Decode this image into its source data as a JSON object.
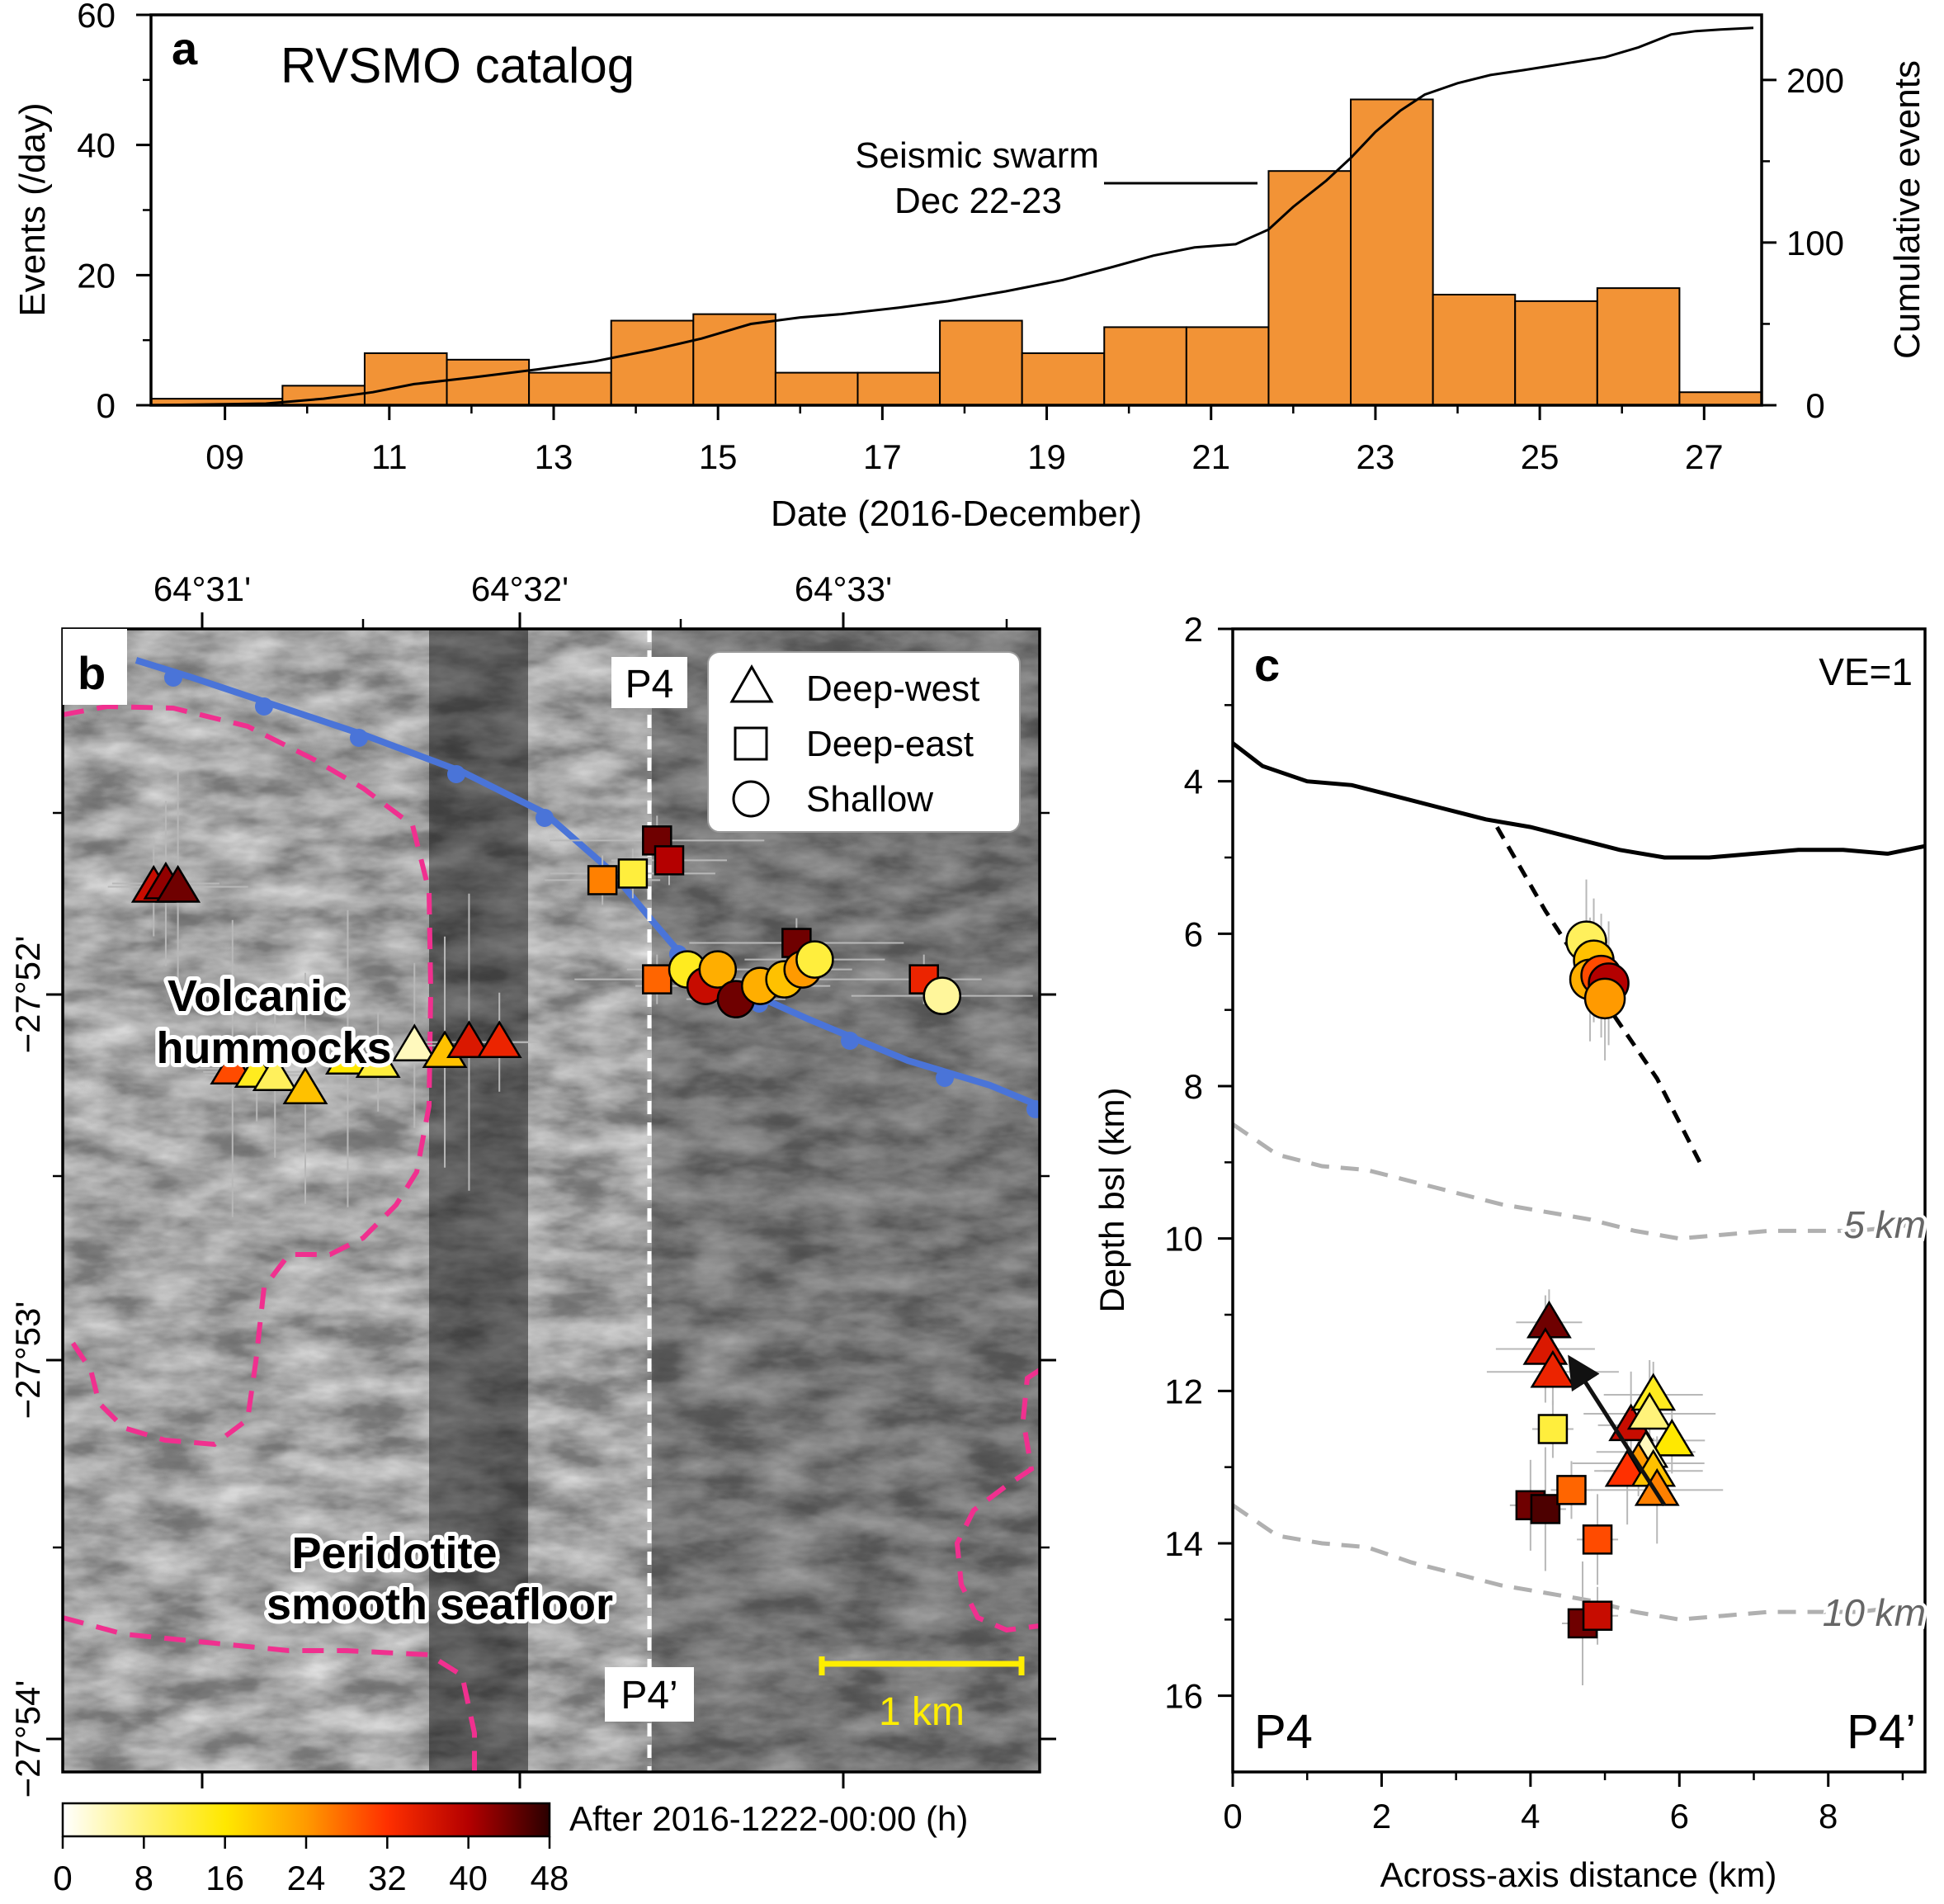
{
  "chart_data": [
    {
      "panel": "a",
      "type": "bar",
      "title": "RVSMO catalog",
      "xlabel": "Date (2016-December)",
      "ylabel": "Events (/day)",
      "y2label": "Cumulative events",
      "x_tick_labels": [
        "09",
        "11",
        "13",
        "15",
        "17",
        "19",
        "21",
        "23",
        "25",
        "27"
      ],
      "x_tick_values": [
        9,
        11,
        13,
        15,
        17,
        19,
        21,
        23,
        25,
        27
      ],
      "xlim": [
        8.1,
        27.7
      ],
      "ylim": [
        0,
        60
      ],
      "y_ticks": [
        0,
        20,
        40,
        60
      ],
      "y2lim": [
        0,
        240
      ],
      "y2_ticks": [
        0,
        100,
        200
      ],
      "bar_color": "#f29336",
      "bars": [
        {
          "start": 8.1,
          "end": 9.7,
          "value": 1
        },
        {
          "start": 9.7,
          "end": 10.7,
          "value": 3
        },
        {
          "start": 10.7,
          "end": 11.7,
          "value": 8
        },
        {
          "start": 11.7,
          "end": 12.7,
          "value": 7
        },
        {
          "start": 12.7,
          "end": 13.7,
          "value": 5
        },
        {
          "start": 13.7,
          "end": 14.7,
          "value": 13
        },
        {
          "start": 14.7,
          "end": 15.7,
          "value": 14
        },
        {
          "start": 15.7,
          "end": 16.7,
          "value": 5
        },
        {
          "start": 16.7,
          "end": 17.7,
          "value": 5
        },
        {
          "start": 17.7,
          "end": 18.7,
          "value": 13
        },
        {
          "start": 18.7,
          "end": 19.7,
          "value": 8
        },
        {
          "start": 19.7,
          "end": 20.7,
          "value": 12
        },
        {
          "start": 20.7,
          "end": 21.7,
          "value": 12
        },
        {
          "start": 21.7,
          "end": 22.7,
          "value": 36
        },
        {
          "start": 22.7,
          "end": 23.7,
          "value": 47
        },
        {
          "start": 23.7,
          "end": 24.7,
          "value": 17
        },
        {
          "start": 24.7,
          "end": 25.7,
          "value": 16
        },
        {
          "start": 25.7,
          "end": 26.7,
          "value": 18
        },
        {
          "start": 26.7,
          "end": 27.7,
          "value": 2
        }
      ],
      "cumulative": {
        "x": [
          8.1,
          9.5,
          10.2,
          10.8,
          11.3,
          12.0,
          12.8,
          13.5,
          14.2,
          14.8,
          15.4,
          16.0,
          16.5,
          17.2,
          17.8,
          18.5,
          19.2,
          19.8,
          20.3,
          20.8,
          21.3,
          21.7,
          22.0,
          22.4,
          22.7,
          23.0,
          23.3,
          23.6,
          24.0,
          24.4,
          24.8,
          25.3,
          25.8,
          26.2,
          26.6,
          26.9,
          27.2,
          27.6
        ],
        "y": [
          0,
          1,
          4,
          8,
          13,
          17,
          22,
          27,
          34,
          41,
          50,
          54,
          56,
          60,
          64,
          70,
          77,
          85,
          92,
          97,
          99,
          108,
          122,
          138,
          152,
          168,
          181,
          191,
          198,
          203,
          206,
          210,
          214,
          220,
          228,
          230,
          231,
          232
        ]
      },
      "annotation": {
        "lines": [
          "Seismic swarm",
          "Dec 22-23"
        ]
      },
      "grid": false
    },
    {
      "panel": "b",
      "type": "scatter",
      "description_labels": [
        "Volcanic",
        "hummocks",
        "Peridotite",
        "smooth seafloor"
      ],
      "x_tick_labels": [
        "64°31'",
        "64°32'",
        "64°33'"
      ],
      "y_tick_labels": [
        "−27°52'",
        "−27°53'",
        "−27°54'"
      ],
      "profile_labels": [
        "P4",
        "P4’"
      ],
      "scale_bar_label": "1 km",
      "legend": [
        {
          "shape": "triangle",
          "label": "Deep-west"
        },
        {
          "shape": "square",
          "label": "Deep-east"
        },
        {
          "shape": "circle",
          "label": "Shallow"
        }
      ],
      "legend_position": "top-right",
      "colorbar": {
        "label": "After 2016-1222-00:00 (h)",
        "ticks": [
          "0",
          "8",
          "16",
          "24",
          "32",
          "40",
          "48"
        ],
        "range": [
          0,
          48
        ],
        "colors": [
          "#ffffff",
          "#fff37a",
          "#ffe800",
          "#ff9a00",
          "#ff3000",
          "#b40000",
          "#2a0000"
        ]
      },
      "events": {
        "triangles": [
          {
            "e": 1.5,
            "n": 12.1,
            "t": 38
          },
          {
            "e": 1.7,
            "n": 12.15,
            "t": 42
          },
          {
            "e": 1.9,
            "n": 12.1,
            "t": 44
          },
          {
            "e": 2.8,
            "n": 9.35,
            "t": 30
          },
          {
            "e": 3.2,
            "n": 9.3,
            "t": 14
          },
          {
            "e": 3.5,
            "n": 9.25,
            "t": 10
          },
          {
            "e": 4.0,
            "n": 9.05,
            "t": 20
          },
          {
            "e": 4.7,
            "n": 9.5,
            "t": 16
          },
          {
            "e": 5.2,
            "n": 9.45,
            "t": 12
          },
          {
            "e": 5.8,
            "n": 9.7,
            "t": 4
          },
          {
            "e": 6.3,
            "n": 9.6,
            "t": 20
          },
          {
            "e": 6.7,
            "n": 9.75,
            "t": 36
          },
          {
            "e": 7.2,
            "n": 9.75,
            "t": 34
          }
        ],
        "squares": [
          {
            "e": 8.9,
            "n": 12.2,
            "t": 26
          },
          {
            "e": 9.4,
            "n": 12.3,
            "t": 12
          },
          {
            "e": 9.8,
            "n": 12.8,
            "t": 44
          },
          {
            "e": 10.0,
            "n": 12.5,
            "t": 40
          },
          {
            "e": 9.8,
            "n": 10.7,
            "t": 28
          },
          {
            "e": 12.1,
            "n": 11.25,
            "t": 44
          },
          {
            "e": 14.2,
            "n": 10.7,
            "t": 34
          }
        ],
        "circles": [
          {
            "e": 10.3,
            "n": 10.85,
            "t": 14
          },
          {
            "e": 10.6,
            "n": 10.6,
            "t": 38
          },
          {
            "e": 10.8,
            "n": 10.85,
            "t": 22
          },
          {
            "e": 11.1,
            "n": 10.4,
            "t": 44
          },
          {
            "e": 11.5,
            "n": 10.6,
            "t": 22
          },
          {
            "e": 11.9,
            "n": 10.7,
            "t": 20
          },
          {
            "e": 12.2,
            "n": 10.85,
            "t": 24
          },
          {
            "e": 12.4,
            "n": 11.0,
            "t": 12
          },
          {
            "e": 14.5,
            "n": 10.45,
            "t": 6
          }
        ]
      }
    },
    {
      "panel": "c",
      "type": "scatter",
      "xlabel": "Across-axis distance (km)",
      "ylabel": "Depth bsl (km)",
      "xlim": [
        0,
        9.3
      ],
      "ylim": [
        17,
        2
      ],
      "x_ticks": [
        0,
        2,
        4,
        6,
        8
      ],
      "y_ticks": [
        2,
        4,
        6,
        8,
        10,
        12,
        14,
        16
      ],
      "corner_labels": {
        "top_right": "VE=1",
        "bottom_left": "P4",
        "bottom_right": "P4’"
      },
      "contour_labels": [
        "5 km",
        "10 km"
      ],
      "seafloor": {
        "x": [
          0,
          0.4,
          1.0,
          1.6,
          2.2,
          2.8,
          3.4,
          4.0,
          4.6,
          5.2,
          5.8,
          6.4,
          7.0,
          7.6,
          8.2,
          8.8,
          9.3
        ],
        "y": [
          3.5,
          3.8,
          4.0,
          4.05,
          4.2,
          4.35,
          4.5,
          4.6,
          4.75,
          4.9,
          5.0,
          5.0,
          4.95,
          4.9,
          4.9,
          4.95,
          4.85
        ]
      },
      "contour_5km": {
        "x": [
          0,
          0.6,
          1.2,
          1.8,
          2.4,
          3.0,
          3.6,
          4.2,
          4.8,
          5.4,
          6.0,
          6.6,
          7.2,
          7.8,
          8.4,
          9.3
        ],
        "y": [
          8.5,
          8.9,
          9.05,
          9.1,
          9.25,
          9.4,
          9.55,
          9.65,
          9.75,
          9.9,
          10.0,
          9.95,
          9.9,
          9.9,
          9.9,
          9.8
        ]
      },
      "contour_10km": {
        "x": [
          0,
          0.6,
          1.2,
          1.8,
          2.4,
          3.0,
          3.6,
          4.2,
          4.8,
          5.4,
          6.0,
          6.6,
          7.2,
          7.8,
          8.4,
          9.3
        ],
        "y": [
          13.5,
          13.9,
          14.0,
          14.05,
          14.25,
          14.4,
          14.55,
          14.65,
          14.75,
          14.9,
          15.0,
          14.95,
          14.9,
          14.9,
          14.9,
          14.8
        ]
      },
      "fault_trace": {
        "x": [
          3.55,
          4.2,
          5.0,
          5.7,
          6.3
        ],
        "y": [
          4.6,
          5.7,
          6.9,
          7.9,
          9.05
        ]
      },
      "migration_arrow": {
        "from": [
          5.8,
          13.5
        ],
        "to": [
          4.55,
          11.6
        ]
      },
      "events": {
        "circles": [
          {
            "x": 4.75,
            "y": 6.1,
            "t": 10
          },
          {
            "x": 4.85,
            "y": 6.35,
            "t": 20
          },
          {
            "x": 4.8,
            "y": 6.6,
            "t": 22
          },
          {
            "x": 4.95,
            "y": 6.55,
            "t": 30
          },
          {
            "x": 5.05,
            "y": 6.65,
            "t": 40
          },
          {
            "x": 5.0,
            "y": 6.85,
            "t": 24
          }
        ],
        "triangles": [
          {
            "x": 4.25,
            "y": 11.1,
            "t": 44
          },
          {
            "x": 4.2,
            "y": 11.45,
            "t": 36
          },
          {
            "x": 4.3,
            "y": 11.75,
            "t": 34
          },
          {
            "x": 5.35,
            "y": 12.45,
            "t": 38
          },
          {
            "x": 5.65,
            "y": 12.05,
            "t": 14
          },
          {
            "x": 5.6,
            "y": 12.3,
            "t": 8
          },
          {
            "x": 5.9,
            "y": 12.65,
            "t": 16
          },
          {
            "x": 5.55,
            "y": 12.8,
            "t": 4
          },
          {
            "x": 5.45,
            "y": 12.95,
            "t": 24
          },
          {
            "x": 5.3,
            "y": 13.05,
            "t": 32
          },
          {
            "x": 5.65,
            "y": 13.05,
            "t": 20
          },
          {
            "x": 5.7,
            "y": 13.3,
            "t": 26
          }
        ],
        "squares": [
          {
            "x": 4.3,
            "y": 12.5,
            "t": 12
          },
          {
            "x": 4.0,
            "y": 13.5,
            "t": 44
          },
          {
            "x": 4.2,
            "y": 13.55,
            "t": 46
          },
          {
            "x": 4.55,
            "y": 13.3,
            "t": 28
          },
          {
            "x": 4.9,
            "y": 13.95,
            "t": 30
          },
          {
            "x": 4.7,
            "y": 15.05,
            "t": 44
          },
          {
            "x": 4.9,
            "y": 14.95,
            "t": 38
          }
        ]
      }
    }
  ],
  "panel_labels": {
    "a": "a",
    "b": "b",
    "c": "c"
  }
}
